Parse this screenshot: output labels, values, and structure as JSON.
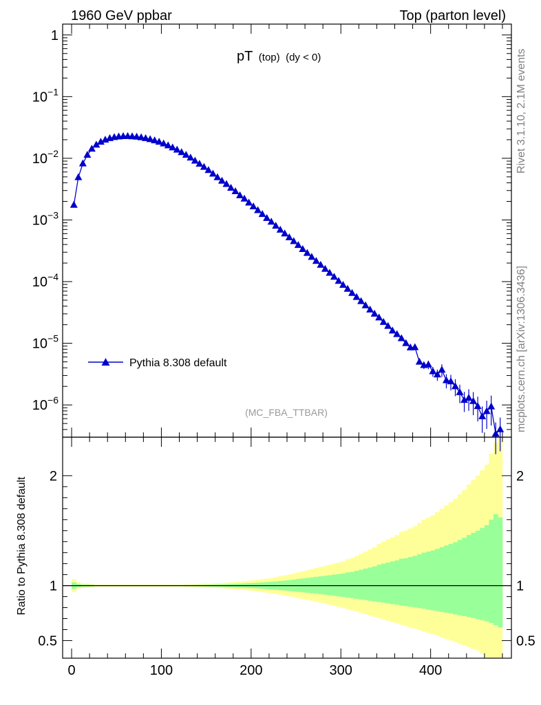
{
  "header": {
    "left": "1960 GeV ppbar",
    "right": "Top (parton level)"
  },
  "plot_title": {
    "main": "pT",
    "sub": "(top)",
    "cond": "(dy < 0)"
  },
  "analysis_tag": "(MC_FBA_TTBAR)",
  "side_text": {
    "rivet": "Rivet 3.1.10,  2.1M events",
    "mcplots": "mcplots.cern.ch [arXiv:1306.3436]"
  },
  "ratio_ylabel": "Ratio to Pythia 8.308 default",
  "legend": {
    "label": "Pythia 8.308 default"
  },
  "colors": {
    "series": "#0000cc",
    "band_inner": "#99ff99",
    "band_outer": "#ffff99"
  },
  "chart_data": [
    {
      "type": "line",
      "log_y": true,
      "xlim": [
        -10,
        490
      ],
      "ylim": [
        3e-07,
        1.5
      ],
      "y_ticks": [
        "1",
        "10^-1",
        "10^-2",
        "10^-3",
        "10^-4",
        "10^-5",
        "10^-6"
      ],
      "series": [
        {
          "name": "Pythia 8.308 default",
          "marker": "triangle",
          "x": [
            2.5,
            7.5,
            12.5,
            17.5,
            22.5,
            27.5,
            32.5,
            37.5,
            42.5,
            47.5,
            52.5,
            57.5,
            62.5,
            67.5,
            72.5,
            77.5,
            82.5,
            87.5,
            92.5,
            97.5,
            102.5,
            107.5,
            112.5,
            117.5,
            122.5,
            127.5,
            132.5,
            137.5,
            142.5,
            147.5,
            152.5,
            157.5,
            162.5,
            167.5,
            172.5,
            177.5,
            182.5,
            187.5,
            192.5,
            197.5,
            202.5,
            207.5,
            212.5,
            217.5,
            222.5,
            227.5,
            232.5,
            237.5,
            242.5,
            247.5,
            252.5,
            257.5,
            262.5,
            267.5,
            272.5,
            277.5,
            282.5,
            287.5,
            292.5,
            297.5,
            302.5,
            307.5,
            312.5,
            317.5,
            322.5,
            327.5,
            332.5,
            337.5,
            342.5,
            347.5,
            352.5,
            357.5,
            362.5,
            367.5,
            372.5,
            377.5,
            382.5,
            387.5,
            392.5,
            397.5,
            402.5,
            407.5,
            412.5,
            417.5,
            422.5,
            427.5,
            432.5,
            437.5,
            442.5,
            447.5,
            452.5,
            457.5,
            462.5,
            467.5,
            472.5,
            477.5
          ],
          "y": [
            0.00175,
            0.0049,
            0.0082,
            0.0113,
            0.0142,
            0.0165,
            0.0184,
            0.0199,
            0.0211,
            0.0219,
            0.0224,
            0.0227,
            0.0228,
            0.0226,
            0.0223,
            0.0218,
            0.0211,
            0.0203,
            0.0194,
            0.0184,
            0.0173,
            0.0161,
            0.0149,
            0.0137,
            0.0125,
            0.0113,
            0.0102,
            0.0091,
            0.0081,
            0.0072,
            0.0064,
            0.0056,
            0.0049,
            0.0043,
            0.0038,
            0.0033,
            0.0029,
            0.0025,
            0.0022,
            0.0019,
            0.00165,
            0.00143,
            0.00124,
            0.00107,
            0.00093,
            0.0008,
            0.00069,
            0.0006,
            0.00052,
            0.00045,
            0.00039,
            0.000335,
            0.00029,
            0.00025,
            0.000215,
            0.000186,
            0.00016,
            0.000138,
            0.000119,
            0.000102,
            8.8e-05,
            7.6e-05,
            6.5e-05,
            5.6e-05,
            4.8e-05,
            4.1e-05,
            3.5e-05,
            3e-05,
            2.6e-05,
            2.2e-05,
            1.9e-05,
            1.6e-05,
            1.4e-05,
            1.2e-05,
            1e-05,
            8.5e-06,
            8.6e-06,
            5e-06,
            4.4e-06,
            4.5e-06,
            3.5e-06,
            3.1e-06,
            3.7e-06,
            2.5e-06,
            2.4e-06,
            2e-06,
            1.6e-06,
            1.2e-06,
            1.3e-06,
            1.15e-06,
            9.5e-07,
            6.5e-07,
            7.9e-07,
            9.4e-07,
            3.4e-07,
            4e-07
          ]
        }
      ]
    },
    {
      "type": "area",
      "xlim": [
        -10,
        490
      ],
      "ylim": [
        0.34,
        2.35
      ],
      "x_ticks": [
        0,
        100,
        200,
        300,
        400
      ],
      "y_ticks": [
        0.5,
        1,
        2
      ],
      "reference": 1,
      "bins_x": [
        2.5,
        7.5,
        12.5,
        17.5,
        22.5,
        27.5,
        32.5,
        37.5,
        42.5,
        47.5,
        52.5,
        57.5,
        62.5,
        67.5,
        72.5,
        77.5,
        82.5,
        87.5,
        92.5,
        97.5,
        102.5,
        107.5,
        112.5,
        117.5,
        122.5,
        127.5,
        132.5,
        137.5,
        142.5,
        147.5,
        152.5,
        157.5,
        162.5,
        167.5,
        172.5,
        177.5,
        182.5,
        187.5,
        192.5,
        197.5,
        202.5,
        207.5,
        212.5,
        217.5,
        222.5,
        227.5,
        232.5,
        237.5,
        242.5,
        247.5,
        252.5,
        257.5,
        262.5,
        267.5,
        272.5,
        277.5,
        282.5,
        287.5,
        292.5,
        297.5,
        302.5,
        307.5,
        312.5,
        317.5,
        322.5,
        327.5,
        332.5,
        337.5,
        342.5,
        347.5,
        352.5,
        357.5,
        362.5,
        367.5,
        372.5,
        377.5,
        382.5,
        387.5,
        392.5,
        397.5,
        402.5,
        407.5,
        412.5,
        417.5,
        422.5,
        427.5,
        432.5,
        437.5,
        442.5,
        447.5,
        452.5,
        457.5,
        462.5,
        467.5,
        472.5,
        477.5
      ],
      "series": [
        {
          "name": "",
          "band": "outer",
          "upper": [
            1.06,
            1.03,
            1.02,
            1.02,
            1.015,
            1.01,
            1.01,
            1.01,
            1.01,
            1.01,
            1.01,
            1.01,
            1.01,
            1.01,
            1.01,
            1.01,
            1.01,
            1.01,
            1.01,
            1.01,
            1.01,
            1.01,
            1.01,
            1.01,
            1.01,
            1.012,
            1.012,
            1.014,
            1.015,
            1.016,
            1.018,
            1.02,
            1.022,
            1.024,
            1.027,
            1.03,
            1.033,
            1.036,
            1.04,
            1.044,
            1.048,
            1.053,
            1.058,
            1.064,
            1.07,
            1.077,
            1.085,
            1.093,
            1.1,
            1.11,
            1.12,
            1.13,
            1.14,
            1.15,
            1.16,
            1.17,
            1.18,
            1.19,
            1.2,
            1.21,
            1.22,
            1.24,
            1.25,
            1.27,
            1.29,
            1.31,
            1.33,
            1.35,
            1.38,
            1.4,
            1.42,
            1.44,
            1.46,
            1.49,
            1.5,
            1.52,
            1.54,
            1.57,
            1.6,
            1.62,
            1.64,
            1.67,
            1.7,
            1.73,
            1.76,
            1.79,
            1.83,
            1.87,
            1.92,
            1.96,
            2.0,
            2.05,
            2.1,
            2.2,
            2.3,
            2.35
          ],
          "lower": [
            0.94,
            0.97,
            0.98,
            0.98,
            0.985,
            0.99,
            0.99,
            0.99,
            0.99,
            0.99,
            0.99,
            0.99,
            0.99,
            0.99,
            0.99,
            0.99,
            0.99,
            0.99,
            0.99,
            0.99,
            0.99,
            0.99,
            0.99,
            0.99,
            0.99,
            0.988,
            0.988,
            0.986,
            0.985,
            0.984,
            0.982,
            0.98,
            0.978,
            0.976,
            0.973,
            0.97,
            0.967,
            0.964,
            0.96,
            0.956,
            0.952,
            0.947,
            0.942,
            0.936,
            0.93,
            0.924,
            0.918,
            0.91,
            0.902,
            0.895,
            0.886,
            0.878,
            0.87,
            0.862,
            0.853,
            0.844,
            0.836,
            0.826,
            0.816,
            0.806,
            0.796,
            0.786,
            0.775,
            0.764,
            0.752,
            0.74,
            0.728,
            0.716,
            0.704,
            0.692,
            0.68,
            0.668,
            0.656,
            0.644,
            0.632,
            0.62,
            0.608,
            0.596,
            0.583,
            0.57,
            0.557,
            0.544,
            0.53,
            0.516,
            0.5,
            0.486,
            0.47,
            0.455,
            0.44,
            0.424,
            0.41,
            0.38,
            0.34,
            0.34,
            0.34,
            0.34
          ]
        },
        {
          "name": "",
          "band": "inner",
          "upper": [
            1.03,
            1.015,
            1.01,
            1.01,
            1.008,
            1.005,
            1.005,
            1.005,
            1.005,
            1.005,
            1.005,
            1.005,
            1.005,
            1.005,
            1.005,
            1.005,
            1.005,
            1.005,
            1.005,
            1.005,
            1.005,
            1.005,
            1.005,
            1.005,
            1.005,
            1.006,
            1.006,
            1.007,
            1.007,
            1.008,
            1.009,
            1.01,
            1.011,
            1.012,
            1.013,
            1.015,
            1.016,
            1.018,
            1.02,
            1.022,
            1.024,
            1.026,
            1.029,
            1.032,
            1.035,
            1.038,
            1.042,
            1.046,
            1.05,
            1.055,
            1.06,
            1.065,
            1.07,
            1.075,
            1.08,
            1.085,
            1.09,
            1.095,
            1.1,
            1.105,
            1.11,
            1.12,
            1.125,
            1.135,
            1.145,
            1.155,
            1.165,
            1.175,
            1.19,
            1.2,
            1.21,
            1.22,
            1.23,
            1.245,
            1.25,
            1.26,
            1.27,
            1.285,
            1.3,
            1.31,
            1.32,
            1.335,
            1.35,
            1.365,
            1.38,
            1.395,
            1.415,
            1.435,
            1.46,
            1.48,
            1.5,
            1.525,
            1.55,
            1.6,
            1.65,
            1.62
          ],
          "lower": [
            0.97,
            0.985,
            0.99,
            0.99,
            0.992,
            0.995,
            0.995,
            0.995,
            0.995,
            0.995,
            0.995,
            0.995,
            0.995,
            0.995,
            0.995,
            0.995,
            0.995,
            0.995,
            0.995,
            0.995,
            0.995,
            0.995,
            0.995,
            0.995,
            0.995,
            0.994,
            0.994,
            0.993,
            0.993,
            0.992,
            0.991,
            0.99,
            0.989,
            0.988,
            0.987,
            0.985,
            0.984,
            0.982,
            0.98,
            0.978,
            0.976,
            0.974,
            0.971,
            0.968,
            0.965,
            0.962,
            0.958,
            0.955,
            0.951,
            0.947,
            0.943,
            0.939,
            0.935,
            0.931,
            0.926,
            0.922,
            0.917,
            0.912,
            0.907,
            0.902,
            0.897,
            0.892,
            0.886,
            0.88,
            0.874,
            0.868,
            0.862,
            0.856,
            0.85,
            0.844,
            0.838,
            0.832,
            0.826,
            0.82,
            0.814,
            0.808,
            0.802,
            0.796,
            0.789,
            0.782,
            0.775,
            0.768,
            0.761,
            0.754,
            0.746,
            0.738,
            0.73,
            0.722,
            0.714,
            0.705,
            0.695,
            0.685,
            0.675,
            0.66,
            0.64,
            0.62
          ]
        }
      ]
    }
  ]
}
